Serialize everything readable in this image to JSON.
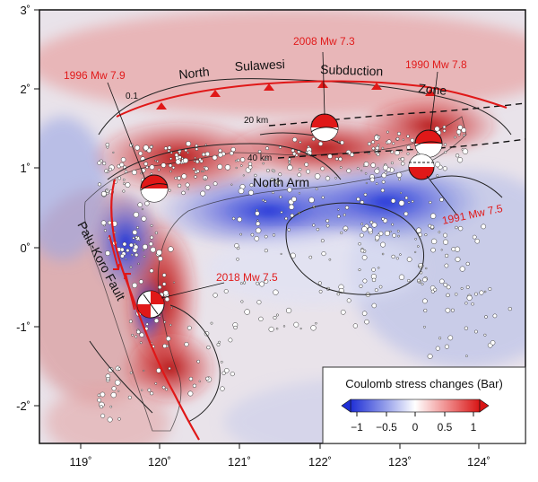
{
  "axes": {
    "longitude_ticks": [
      "119˚",
      "120˚",
      "121˚",
      "122˚",
      "123˚",
      "124˚"
    ],
    "latitude_ticks": [
      "3˚",
      "2˚",
      "1˚",
      "0˚",
      "-1˚",
      "-2˚"
    ]
  },
  "labels": {
    "region": [
      "North",
      "Sulawesi",
      "Subduction",
      "Zone"
    ],
    "north_arm": "North Arm",
    "fault": "Palu-Koro Fault"
  },
  "contours": {
    "depth_20": "20 km",
    "depth_40": "40 km",
    "value_01": "0.1"
  },
  "earthquakes": [
    {
      "label": "1996 Mw 7.9",
      "lon": 119.9,
      "lat": 0.75
    },
    {
      "label": "2008 Mw 7.3",
      "lon": 122.1,
      "lat": 1.5
    },
    {
      "label": "1990 Mw 7.8",
      "lon": 123.2,
      "lat": 1.3
    },
    {
      "label": "1991 Mw 7.5",
      "lon": 123.2,
      "lat": 0.98
    },
    {
      "label": "2018 Mw 7.5",
      "lon": 119.85,
      "lat": -0.73
    }
  ],
  "legend": {
    "title": "Coulomb stress changes (Bar)",
    "ticks": [
      "−1",
      "−0.5",
      "0",
      "0.5",
      "1"
    ],
    "colors": {
      "negative": "#1f2fd6",
      "zero": "#ffffff",
      "positive": "#e01818"
    }
  },
  "colors": {
    "quake_label": "#e11b1b",
    "trench": "#e01818"
  }
}
